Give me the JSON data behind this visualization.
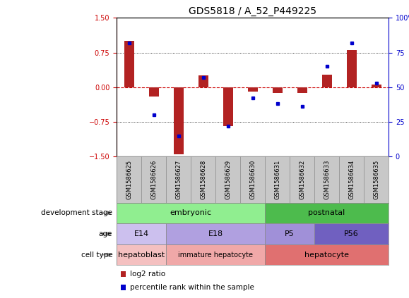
{
  "title": "GDS5818 / A_52_P449225",
  "samples": [
    "GSM1586625",
    "GSM1586626",
    "GSM1586627",
    "GSM1586628",
    "GSM1586629",
    "GSM1586630",
    "GSM1586631",
    "GSM1586632",
    "GSM1586633",
    "GSM1586634",
    "GSM1586635"
  ],
  "log2_ratio": [
    1.0,
    -0.2,
    -1.45,
    0.25,
    -0.85,
    -0.1,
    -0.12,
    -0.12,
    0.27,
    0.8,
    0.05
  ],
  "percentile": [
    82,
    30,
    15,
    57,
    22,
    42,
    38,
    36,
    65,
    82,
    53
  ],
  "ylim_left": [
    -1.5,
    1.5
  ],
  "ylim_right": [
    0,
    100
  ],
  "yticks_left": [
    -1.5,
    -0.75,
    0.0,
    0.75,
    1.5
  ],
  "yticks_right": [
    0,
    25,
    50,
    75,
    100
  ],
  "bar_color": "#b22222",
  "dot_color": "#0000cc",
  "hline_color": "#cc0000",
  "dotted_line_color": "#000000",
  "dev_segments": [
    {
      "start": 0,
      "end": 5,
      "color": "#90ee90",
      "label": "embryonic"
    },
    {
      "start": 6,
      "end": 10,
      "color": "#4dbb4d",
      "label": "postnatal"
    }
  ],
  "age_segments": [
    {
      "start": 0,
      "end": 1,
      "color": "#ccc0ee",
      "label": "E14"
    },
    {
      "start": 2,
      "end": 5,
      "color": "#b0a0e0",
      "label": "E18"
    },
    {
      "start": 6,
      "end": 7,
      "color": "#a090d8",
      "label": "P5"
    },
    {
      "start": 8,
      "end": 10,
      "color": "#7060c0",
      "label": "P56"
    }
  ],
  "cell_segments": [
    {
      "start": 0,
      "end": 1,
      "color": "#f4c0c0",
      "label": "hepatoblast"
    },
    {
      "start": 2,
      "end": 5,
      "color": "#f0a8a8",
      "label": "immature hepatocyte"
    },
    {
      "start": 6,
      "end": 10,
      "color": "#e07070",
      "label": "hepatocyte"
    }
  ],
  "legend_items": [
    {
      "color": "#b22222",
      "label": "log2 ratio"
    },
    {
      "color": "#0000cc",
      "label": "percentile rank within the sample"
    }
  ],
  "row_labels": [
    "development stage",
    "age",
    "cell type"
  ],
  "background_color": "#ffffff",
  "plot_bg": "#ffffff",
  "title_fontsize": 10,
  "tick_fontsize": 7,
  "sample_fontsize": 6,
  "annot_fontsize": 8,
  "legend_fontsize": 7.5
}
